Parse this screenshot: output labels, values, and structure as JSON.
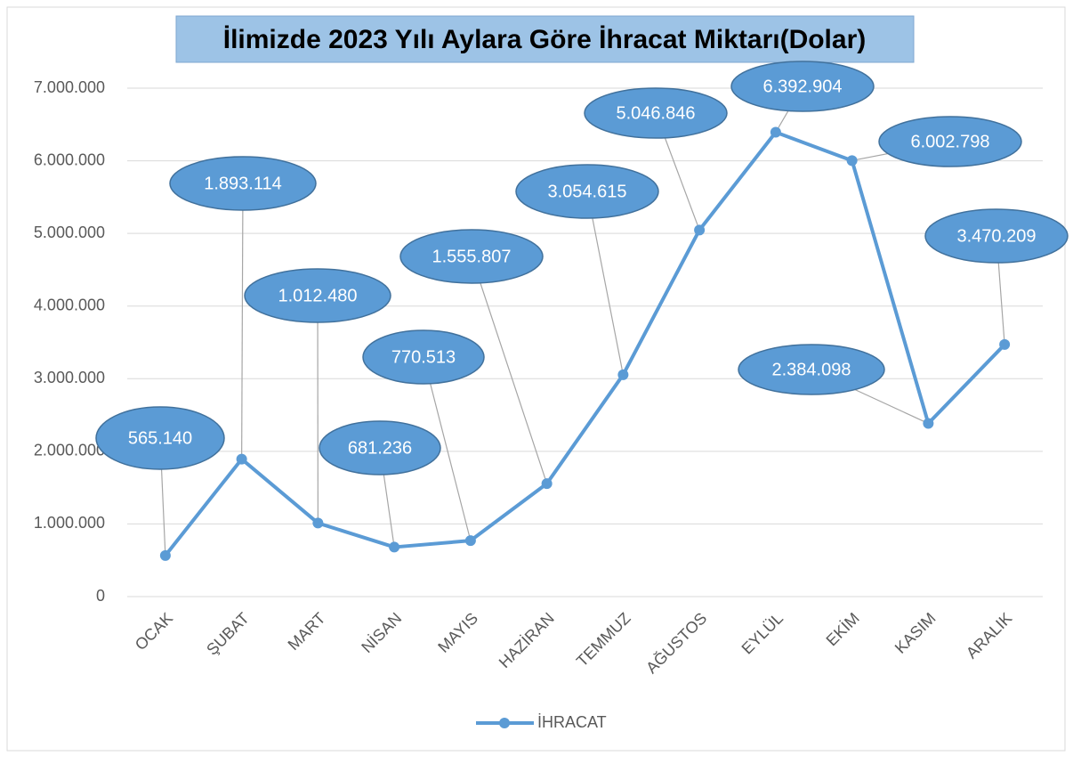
{
  "chart_data": {
    "type": "line",
    "title": "İlimizde 2023 Yılı Aylara Göre İhracat Miktarı(Dolar)",
    "categories": [
      "OCAK",
      "ŞUBAT",
      "MART",
      "NİSAN",
      "MAYIS",
      "HAZİRAN",
      "TEMMUZ",
      "AĞUSTOS",
      "EYLÜL",
      "EKİM",
      "KASIM",
      "ARALIK"
    ],
    "series": [
      {
        "name": "İHRACAT",
        "color": "#5b9bd5",
        "values": [
          565140,
          1893114,
          1012480,
          681236,
          770513,
          1555807,
          3054615,
          5046846,
          6392904,
          6002798,
          2384098,
          3470209
        ],
        "value_labels": [
          "565.140",
          "1.893.114",
          "1.012.480",
          "681.236",
          "770.513",
          "1.555.807",
          "3.054.615",
          "5.046.846",
          "6.392.904",
          "6.002.798",
          "2.384.098",
          "3.470.209"
        ]
      }
    ],
    "ylim": [
      0,
      7000000
    ],
    "yticks": [
      0,
      {
        "value": 1000000,
        "label": "1.000.000"
      },
      {
        "value": 2000000,
        "label": "2.000.000"
      },
      {
        "value": 3000000,
        "label": "3.000.000"
      },
      {
        "value": 4000000,
        "label": "4.000.000"
      },
      {
        "value": 5000000,
        "label": "5.000.000"
      },
      {
        "value": 6000000,
        "label": "6.000.000"
      },
      {
        "value": 7000000,
        "label": "7.000.000"
      }
    ],
    "grid": true,
    "legend": "bottom"
  }
}
